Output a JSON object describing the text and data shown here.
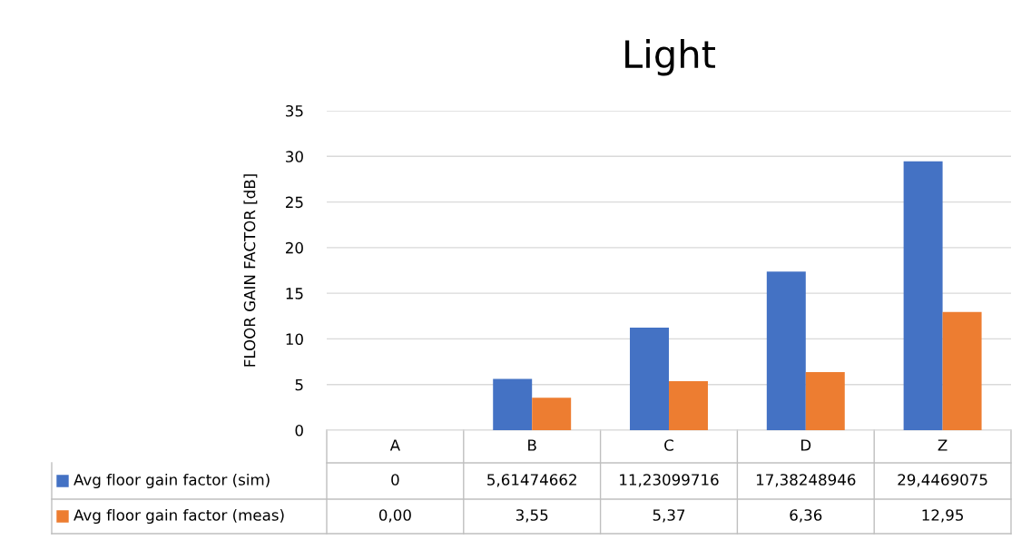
{
  "chart_data": {
    "type": "bar",
    "title": "Light",
    "ylabel": "FLOOR GAIN FACTOR [dB]",
    "categories": [
      "A",
      "B",
      "C",
      "D",
      "Z"
    ],
    "series": [
      {
        "name": "Avg floor gain factor (sim)",
        "color": "#4472c4",
        "values": [
          0,
          5.61474662,
          11.23099716,
          17.38248946,
          29.4469075
        ],
        "value_labels": [
          "0",
          "5,61474662",
          "11,23099716",
          "17,38248946",
          "29,4469075"
        ]
      },
      {
        "name": "Avg floor gain factor (meas)",
        "color": "#ed7d31",
        "values": [
          0,
          3.55,
          5.37,
          6.36,
          12.95
        ],
        "value_labels": [
          "0,00",
          "3,55",
          "5,37",
          "6,36",
          "12,95"
        ]
      }
    ],
    "ylim": [
      0,
      35
    ],
    "yticks": [
      0,
      5,
      10,
      15,
      20,
      25,
      30,
      35
    ],
    "grid": "y",
    "legend": "bottom"
  }
}
